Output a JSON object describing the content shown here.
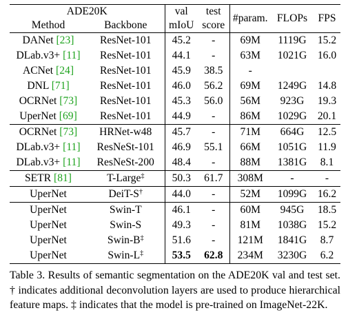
{
  "table": {
    "dataset_label": "ADE20K",
    "header": {
      "method": "Method",
      "backbone": "Backbone",
      "val_top": "val",
      "val_bottom": "mIoU",
      "test_top": "test",
      "test_bottom": "score",
      "params": "#param.",
      "flops": "FLOPs",
      "fps": "FPS"
    },
    "rows": [
      {
        "method": "DANet",
        "cite": "[23]",
        "backbone": "ResNet-101",
        "mark": "",
        "val": "45.2",
        "test": "-",
        "params": "69M",
        "flops": "1119G",
        "fps": "15.2"
      },
      {
        "method": "DLab.v3+",
        "cite": "[11]",
        "backbone": "ResNet-101",
        "mark": "",
        "val": "44.1",
        "test": "-",
        "params": "63M",
        "flops": "1021G",
        "fps": "16.0"
      },
      {
        "method": "ACNet",
        "cite": "[24]",
        "backbone": "ResNet-101",
        "mark": "",
        "val": "45.9",
        "test": "38.5",
        "params": "-",
        "flops": "",
        "fps": ""
      },
      {
        "method": "DNL",
        "cite": "[71]",
        "backbone": "ResNet-101",
        "mark": "",
        "val": "46.0",
        "test": "56.2",
        "params": "69M",
        "flops": "1249G",
        "fps": "14.8"
      },
      {
        "method": "OCRNet",
        "cite": "[73]",
        "backbone": "ResNet-101",
        "mark": "",
        "val": "45.3",
        "test": "56.0",
        "params": "56M",
        "flops": "923G",
        "fps": "19.3"
      },
      {
        "method": "UperNet",
        "cite": "[69]",
        "backbone": "ResNet-101",
        "mark": "",
        "val": "44.9",
        "test": "-",
        "params": "86M",
        "flops": "1029G",
        "fps": "20.1"
      },
      {
        "method": "OCRNet",
        "cite": "[73]",
        "backbone": "HRNet-w48",
        "mark": "",
        "val": "45.7",
        "test": "-",
        "params": "71M",
        "flops": "664G",
        "fps": "12.5"
      },
      {
        "method": "DLab.v3+",
        "cite": "[11]",
        "backbone": "ResNeSt-101",
        "mark": "",
        "val": "46.9",
        "test": "55.1",
        "params": "66M",
        "flops": "1051G",
        "fps": "11.9"
      },
      {
        "method": "DLab.v3+",
        "cite": "[11]",
        "backbone": "ResNeSt-200",
        "mark": "",
        "val": "48.4",
        "test": "-",
        "params": "88M",
        "flops": "1381G",
        "fps": "8.1"
      },
      {
        "method": "SETR",
        "cite": "[81]",
        "backbone": "T-Large",
        "mark": "‡",
        "val": "50.3",
        "test": "61.7",
        "params": "308M",
        "flops": "-",
        "fps": "-"
      },
      {
        "method": "UperNet",
        "cite": "",
        "backbone": "DeiT-S",
        "mark": "†",
        "val": "44.0",
        "test": "-",
        "params": "52M",
        "flops": "1099G",
        "fps": "16.2"
      },
      {
        "method": "UperNet",
        "cite": "",
        "backbone": "Swin-T",
        "mark": "",
        "val": "46.1",
        "test": "-",
        "params": "60M",
        "flops": "945G",
        "fps": "18.5"
      },
      {
        "method": "UperNet",
        "cite": "",
        "backbone": "Swin-S",
        "mark": "",
        "val": "49.3",
        "test": "-",
        "params": "81M",
        "flops": "1038G",
        "fps": "15.2"
      },
      {
        "method": "UperNet",
        "cite": "",
        "backbone": "Swin-B",
        "mark": "‡",
        "val": "51.6",
        "test": "-",
        "params": "121M",
        "flops": "1841G",
        "fps": "8.7"
      },
      {
        "method": "UperNet",
        "cite": "",
        "backbone": "Swin-L",
        "mark": "‡",
        "val": "53.5",
        "test": "62.8",
        "params": "234M",
        "flops": "3230G",
        "fps": "6.2"
      }
    ]
  },
  "caption": {
    "text": "Table 3. Results of semantic segmentation on the ADE20K val and test set. † indicates additional deconvolution layers are used to produce hierarchical feature maps. ‡ indicates that the model is pre-trained on ImageNet-22K."
  }
}
